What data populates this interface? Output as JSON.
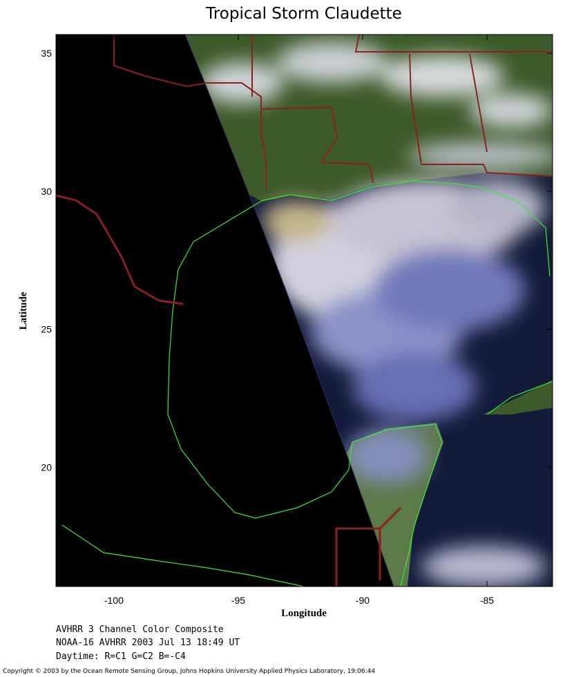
{
  "chart_data": {
    "type": "map",
    "title": "Tropical Storm Claudette",
    "xlabel": "Longitude",
    "ylabel": "Latitude",
    "xlim": [
      -102.33,
      -82.36
    ],
    "ylim": [
      15.68,
      35.68
    ],
    "xticks": [
      -100,
      -95,
      -90,
      -85
    ],
    "yticks": [
      20,
      25,
      30,
      35
    ],
    "notes": [
      "AVHRR 3 Channel Color Composite",
      "NOAA-16 AVHRR 2003 Jul 13 18:49 UT",
      "Daytime: R=C1 G=C2 B=-C4"
    ],
    "copyright": "Copyright © 2003 by the Ocean Remote Sensing Group, Johns Hopkins University Applied Physics Laboratory, 19:06:44"
  }
}
